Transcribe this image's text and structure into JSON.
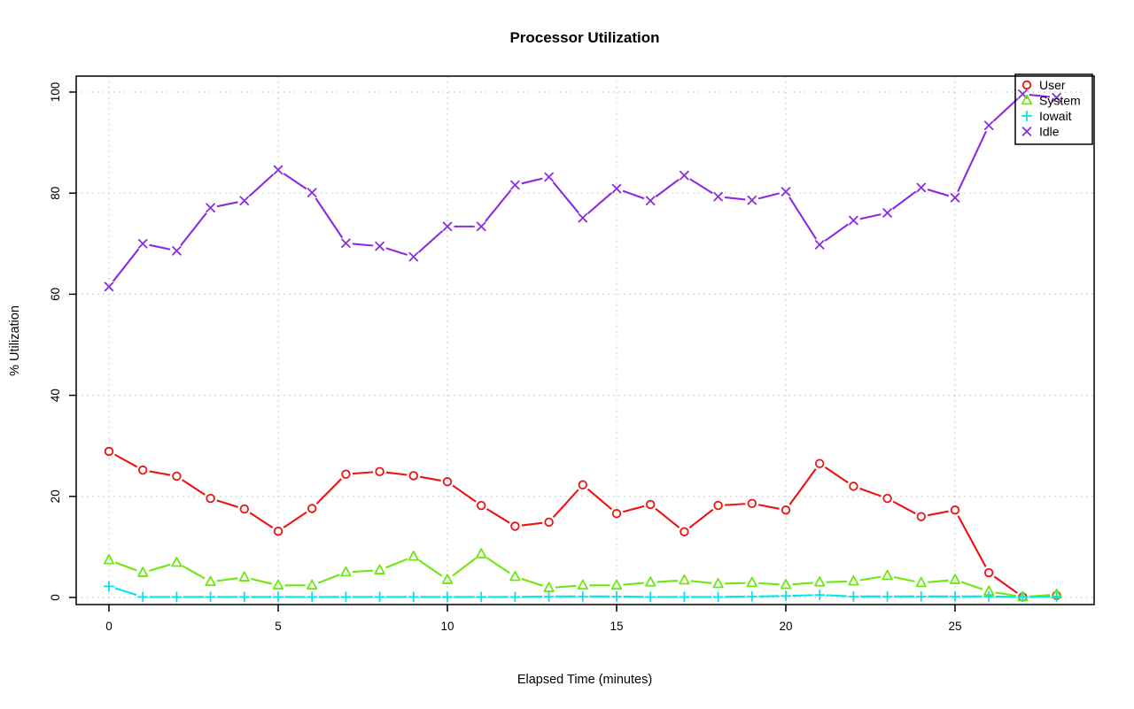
{
  "chart_data": {
    "type": "line",
    "title": "Processor Utilization",
    "xlabel": "Elapsed Time (minutes)",
    "ylabel": "% Utilization",
    "x": [
      0,
      1,
      2,
      3,
      4,
      5,
      6,
      7,
      8,
      9,
      10,
      11,
      12,
      13,
      14,
      15,
      16,
      17,
      18,
      19,
      20,
      21,
      22,
      23,
      24,
      25,
      26,
      27,
      28
    ],
    "xticks": [
      0,
      5,
      10,
      15,
      20,
      25
    ],
    "yticks": [
      0,
      20,
      40,
      60,
      80,
      100
    ],
    "xlim": [
      -1.1,
      29.1
    ],
    "ylim": [
      -4,
      104
    ],
    "grid": true,
    "grid_style": "dotted",
    "grid_color": "#c8c8c8",
    "line_style": "points-with-segments",
    "legend_position": "top-right",
    "series": [
      {
        "name": "User",
        "color": "#ee1111",
        "marker": "circle",
        "values": [
          28.9,
          25.2,
          24.0,
          19.6,
          17.5,
          13.1,
          17.6,
          24.4,
          24.9,
          24.1,
          22.9,
          18.2,
          14.1,
          14.9,
          22.3,
          16.6,
          18.4,
          13.0,
          18.2,
          18.6,
          17.3,
          26.5,
          22.0,
          19.6,
          16.0,
          17.3,
          4.9,
          0.1,
          0.4
        ]
      },
      {
        "name": "System",
        "color": "#6ce811",
        "marker": "triangle",
        "values": [
          7.4,
          4.9,
          6.9,
          3.1,
          4.0,
          2.4,
          2.4,
          5.0,
          5.4,
          8.1,
          3.5,
          8.6,
          4.1,
          1.9,
          2.4,
          2.4,
          3.0,
          3.4,
          2.7,
          2.9,
          2.5,
          3.0,
          3.2,
          4.3,
          2.9,
          3.5,
          1.2,
          0.1,
          0.6
        ]
      },
      {
        "name": "Iowait",
        "color": "#00e5ee",
        "marker": "plus",
        "values": [
          2.2,
          0.1,
          0.1,
          0.1,
          0.1,
          0.1,
          0.1,
          0.1,
          0.1,
          0.1,
          0.1,
          0.1,
          0.1,
          0.2,
          0.2,
          0.2,
          0.1,
          0.1,
          0.1,
          0.2,
          0.3,
          0.5,
          0.2,
          0.2,
          0.2,
          0.2,
          0.2,
          0.1,
          0.2
        ]
      },
      {
        "name": "Idle",
        "color": "#8a2be2",
        "marker": "x",
        "values": [
          61.5,
          70.0,
          68.6,
          77.1,
          78.5,
          84.6,
          80.1,
          70.1,
          69.5,
          67.4,
          73.4,
          73.4,
          81.6,
          83.2,
          75.1,
          80.9,
          78.5,
          83.5,
          79.3,
          78.6,
          80.3,
          69.8,
          74.6,
          76.1,
          81.1,
          79.1,
          93.4,
          99.6,
          98.9
        ]
      }
    ],
    "legend": {
      "items": [
        {
          "label": "User",
          "color": "#ee1111",
          "marker": "circle"
        },
        {
          "label": "System",
          "color": "#6ce811",
          "marker": "triangle"
        },
        {
          "label": "Iowait",
          "color": "#00e5ee",
          "marker": "plus"
        },
        {
          "label": "Idle",
          "color": "#8a2be2",
          "marker": "x"
        }
      ]
    }
  }
}
